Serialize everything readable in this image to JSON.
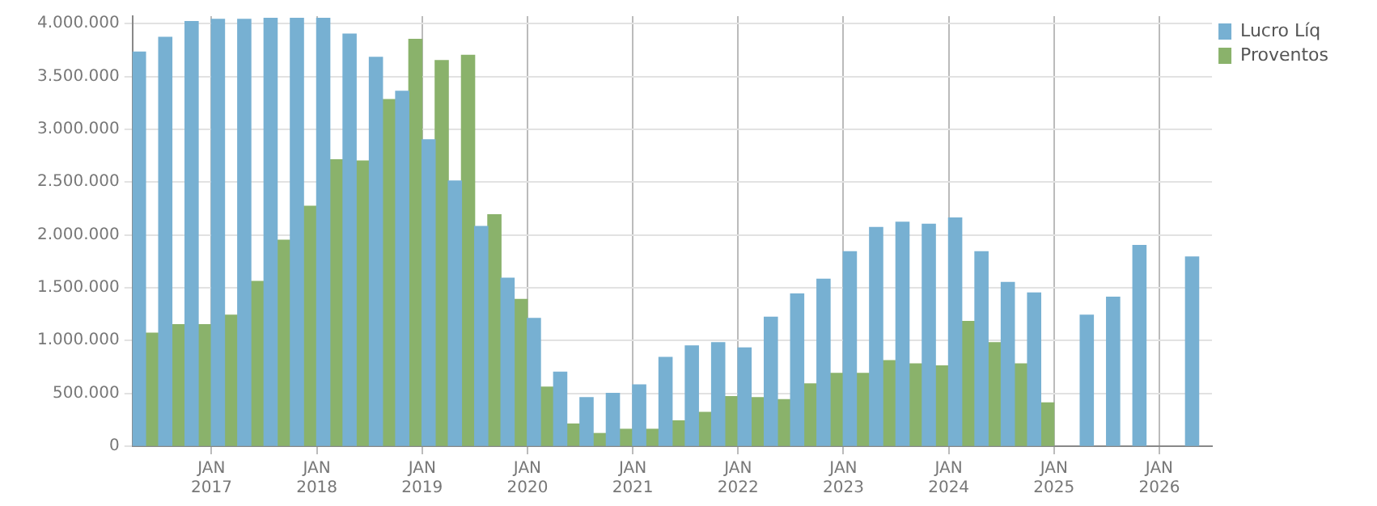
{
  "chart_data": {
    "type": "bar",
    "x": [
      "2016-05-16",
      "2016-08-16",
      "2016-11-16",
      "2017-02-16",
      "2017-05-16",
      "2017-08-16",
      "2017-11-16",
      "2018-02-16",
      "2018-05-16",
      "2018-08-16",
      "2018-11-16",
      "2019-02-16",
      "2019-05-16",
      "2019-08-16",
      "2019-11-16",
      "2020-02-16",
      "2020-05-16",
      "2020-08-16",
      "2020-11-16",
      "2021-02-16",
      "2021-05-16",
      "2021-08-16",
      "2021-11-16",
      "2022-02-16",
      "2022-05-16",
      "2022-08-16",
      "2022-11-16",
      "2023-02-16",
      "2023-05-16",
      "2023-08-16",
      "2023-11-16",
      "2024-02-16",
      "2024-05-16",
      "2024-08-16",
      "2024-11-16",
      "2025-02-16",
      "2025-05-16",
      "2025-08-16",
      "2025-11-16",
      "2026-02-16",
      "2026-05-16"
    ],
    "series": [
      {
        "name": "Lucro Líq",
        "color": "#77b0d2",
        "values": [
          3730000,
          3870000,
          4020000,
          4040000,
          4040000,
          4050000,
          4050000,
          4050000,
          3900000,
          3680000,
          3360000,
          2900000,
          2510000,
          2080000,
          1590000,
          1210000,
          700000,
          460000,
          500000,
          580000,
          840000,
          950000,
          980000,
          930000,
          1220000,
          1440000,
          1580000,
          1840000,
          2070000,
          2120000,
          2100000,
          2160000,
          1840000,
          1550000,
          1450000,
          null,
          1240000,
          1410000,
          1900000,
          null,
          1790000
        ]
      },
      {
        "name": "Proventos",
        "color": "#8ab26b",
        "values": [
          1070000,
          1150000,
          1150000,
          1240000,
          1560000,
          1950000,
          2270000,
          2710000,
          2700000,
          3280000,
          3850000,
          3650000,
          3700000,
          2190000,
          1390000,
          560000,
          210000,
          120000,
          160000,
          160000,
          240000,
          320000,
          470000,
          460000,
          440000,
          590000,
          690000,
          690000,
          810000,
          780000,
          760000,
          1180000,
          980000,
          780000,
          410000,
          null,
          null,
          null,
          null,
          null,
          null
        ]
      }
    ],
    "xlim": [
      "2016-04-01",
      "2026-07-01"
    ],
    "xticks": [
      {
        "value": "2017-01",
        "label": "JAN\n2017"
      },
      {
        "value": "2018-01",
        "label": "JAN\n2018"
      },
      {
        "value": "2019-01",
        "label": "JAN\n2019"
      },
      {
        "value": "2020-01",
        "label": "JAN\n2020"
      },
      {
        "value": "2021-01",
        "label": "JAN\n2021"
      },
      {
        "value": "2022-01",
        "label": "JAN\n2022"
      },
      {
        "value": "2023-01",
        "label": "JAN\n2023"
      },
      {
        "value": "2024-01",
        "label": "JAN\n2024"
      },
      {
        "value": "2025-01",
        "label": "JAN\n2025"
      },
      {
        "value": "2026-01",
        "label": "JAN\n2026"
      }
    ],
    "ylim": [
      0,
      4070000
    ],
    "yticks": [
      0,
      {
        "value": 500000,
        "label": "500.000"
      },
      {
        "value": 1000000,
        "label": "1.000.000"
      },
      {
        "value": 1500000,
        "label": "1.500.000"
      },
      {
        "value": 2000000,
        "label": "2.000.000"
      },
      {
        "value": 2500000,
        "label": "2.500.000"
      },
      {
        "value": 3000000,
        "label": "3.000.000"
      },
      {
        "value": 3500000,
        "label": "3.500.000"
      },
      {
        "value": 4000000,
        "label": "4.000.000"
      }
    ],
    "grid": true,
    "legend": "top right"
  }
}
